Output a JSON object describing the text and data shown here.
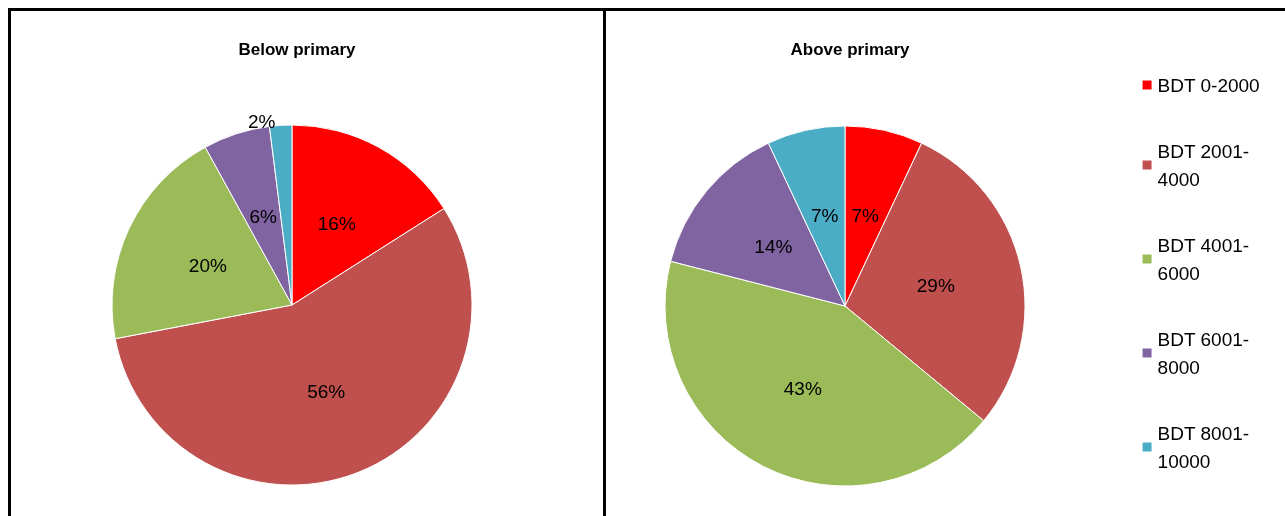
{
  "chart_data": [
    {
      "type": "pie",
      "title": "Below primary",
      "categories": [
        null,
        null,
        null,
        null,
        null
      ],
      "values": [
        16,
        56,
        20,
        6,
        2
      ],
      "value_labels": [
        "16%",
        "56%",
        "20%",
        "6%",
        "2%"
      ],
      "colors": [
        "#ff0000",
        "#c0504d",
        "#9bbb59",
        "#8064a2",
        "#4bacc6"
      ],
      "legend": false
    },
    {
      "type": "pie",
      "title": "Above primary",
      "categories": [
        "BDT 0-2000",
        "BDT 2001-4000",
        "BDT 4001-6000",
        "BDT 6001-8000",
        "BDT 8001-10000"
      ],
      "values": [
        7,
        29,
        43,
        14,
        7
      ],
      "value_labels": [
        "7%",
        "29%",
        "43%",
        "14%",
        "7%"
      ],
      "colors": [
        "#ff0000",
        "#c0504d",
        "#9bbb59",
        "#8064a2",
        "#4bacc6"
      ],
      "legend": "right"
    }
  ]
}
